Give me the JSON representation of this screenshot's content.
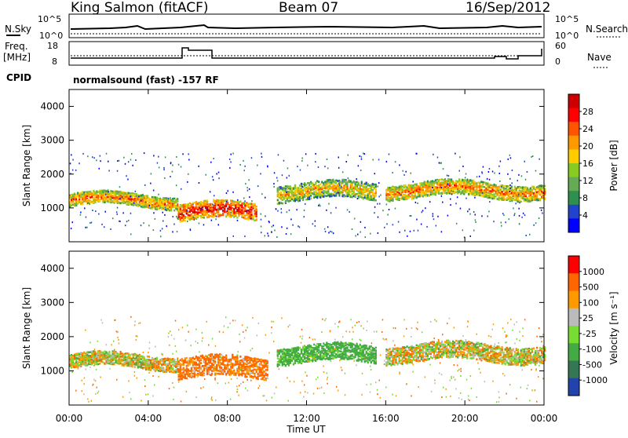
{
  "header": {
    "station": "King Salmon (fitACF)",
    "beam": "Beam 07",
    "date": "16/Sep/2012"
  },
  "noise_panel": {
    "left_label": "N.Sky",
    "right_label": "N.Search",
    "left_ticks": [
      "10^5",
      "10^0"
    ],
    "right_ticks": [
      "10^5",
      "10^0"
    ]
  },
  "freq_panel": {
    "left_label_1": "Freq.",
    "left_label_2": "[MHz]",
    "left_ticks": [
      "18",
      "8"
    ],
    "right_label": "Nave",
    "right_ticks": [
      "60",
      "0"
    ]
  },
  "cpid": {
    "label": "CPID",
    "text": "normalsound (fast) -157 RF"
  },
  "power_panel": {
    "ylabel": "Slant Range [km]",
    "yticks": [
      "4000",
      "3000",
      "2000",
      "1000"
    ],
    "colorbar_label": "Power [dB]",
    "colorbar_ticks": [
      "28",
      "24",
      "20",
      "16",
      "12",
      "8",
      "4"
    ],
    "colors": [
      "#0000ff",
      "#2244cc",
      "#2f8f4f",
      "#66aa55",
      "#88cc22",
      "#ffcc00",
      "#ff9900",
      "#ff5500",
      "#ff0000",
      "#cc0000"
    ]
  },
  "velocity_panel": {
    "ylabel": "Slant Range [km]",
    "yticks": [
      "4000",
      "3000",
      "2000",
      "1000"
    ],
    "colorbar_label": "Velocity [m s⁻¹]",
    "colorbar_ticks": [
      "1000",
      "500",
      "100",
      "25",
      "-25",
      "-100",
      "-500",
      "-1000"
    ],
    "colors": [
      "#2244aa",
      "#337755",
      "#44aa44",
      "#77dd33",
      "#bbbbbb",
      "#ff9900",
      "#ff6600",
      "#ff0000"
    ]
  },
  "x_axis": {
    "ticks": [
      "00:00",
      "04:00",
      "08:00",
      "12:00",
      "16:00",
      "20:00",
      "00:00"
    ],
    "label": "Time UT"
  },
  "chart_data": {
    "type": "heatmap",
    "title": "King Salmon (fitACF) Beam 07 16/Sep/2012",
    "xlabel": "Time UT",
    "ylabel": "Slant Range [km]",
    "xlim": [
      "00:00",
      "24:00"
    ],
    "ylim": [
      0,
      4500
    ],
    "series": [
      {
        "name": "Power [dB]",
        "scale": [
          4,
          28
        ],
        "scatter_bands": [
          {
            "t_start": 0.0,
            "t_end": 5.5,
            "range_center": 1250,
            "range_halfwidth": 180,
            "level": 0.55
          },
          {
            "t_start": 5.5,
            "t_end": 9.5,
            "range_center": 900,
            "range_halfwidth": 250,
            "level": 0.7
          },
          {
            "t_start": 10.5,
            "t_end": 15.5,
            "range_center": 1500,
            "range_halfwidth": 250,
            "level": 0.45
          },
          {
            "t_start": 16.0,
            "t_end": 24.0,
            "range_center": 1550,
            "range_halfwidth": 220,
            "level": 0.55
          }
        ]
      },
      {
        "name": "Velocity [m s⁻¹]",
        "scale": [
          -1000,
          1000
        ],
        "scatter_bands": [
          {
            "t_start": 0.0,
            "t_end": 5.5,
            "range_center": 1300,
            "range_halfwidth": 200,
            "value": 0
          },
          {
            "t_start": 5.5,
            "t_end": 10.0,
            "range_center": 1100,
            "range_halfwidth": 300,
            "value": -150
          },
          {
            "t_start": 10.5,
            "t_end": 15.5,
            "range_center": 1500,
            "range_halfwidth": 250,
            "value": 200
          },
          {
            "t_start": 16.0,
            "t_end": 24.0,
            "range_center": 1550,
            "range_halfwidth": 250,
            "value": 0
          }
        ]
      }
    ]
  }
}
